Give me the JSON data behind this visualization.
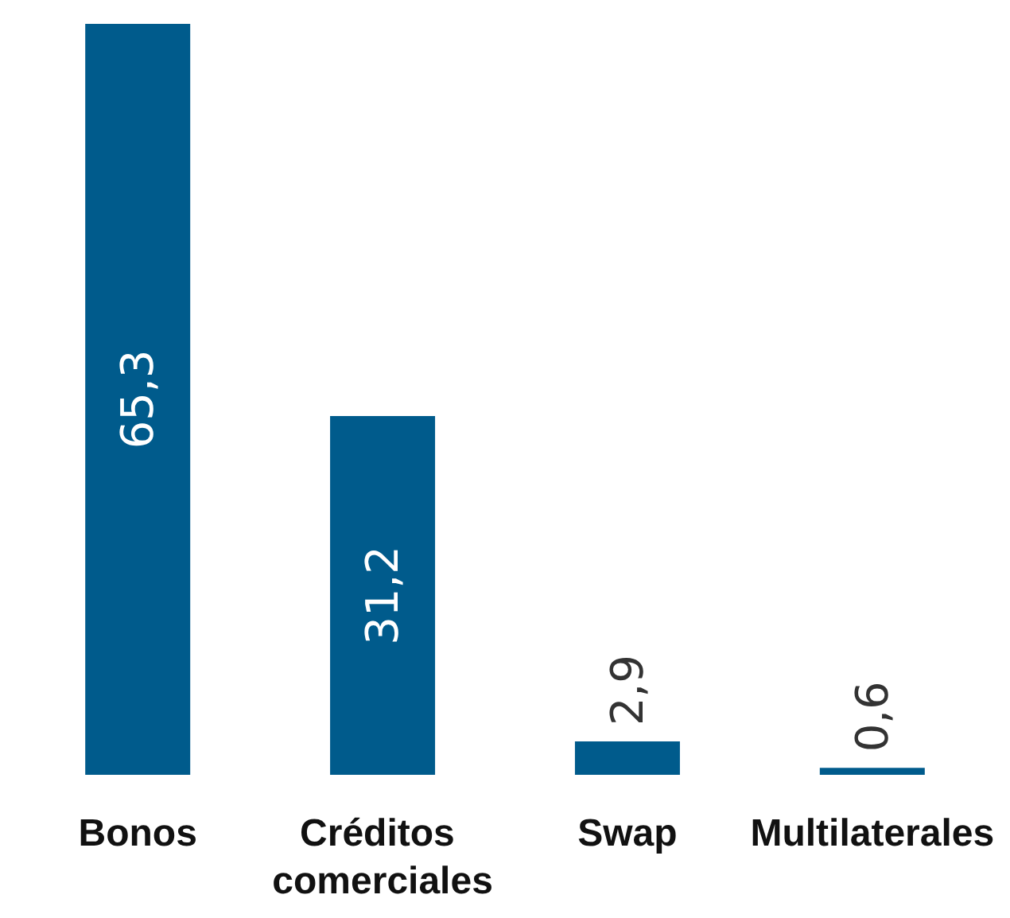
{
  "chart_data": {
    "type": "bar",
    "categories": [
      "Bonos",
      "Créditos comerciales",
      "Swap",
      "Multilaterales"
    ],
    "values": [
      65.3,
      31.2,
      2.9,
      0.6
    ],
    "color": "#005b8c",
    "value_labels": [
      "65,3",
      "31,2",
      "2,9",
      "0,6"
    ]
  }
}
